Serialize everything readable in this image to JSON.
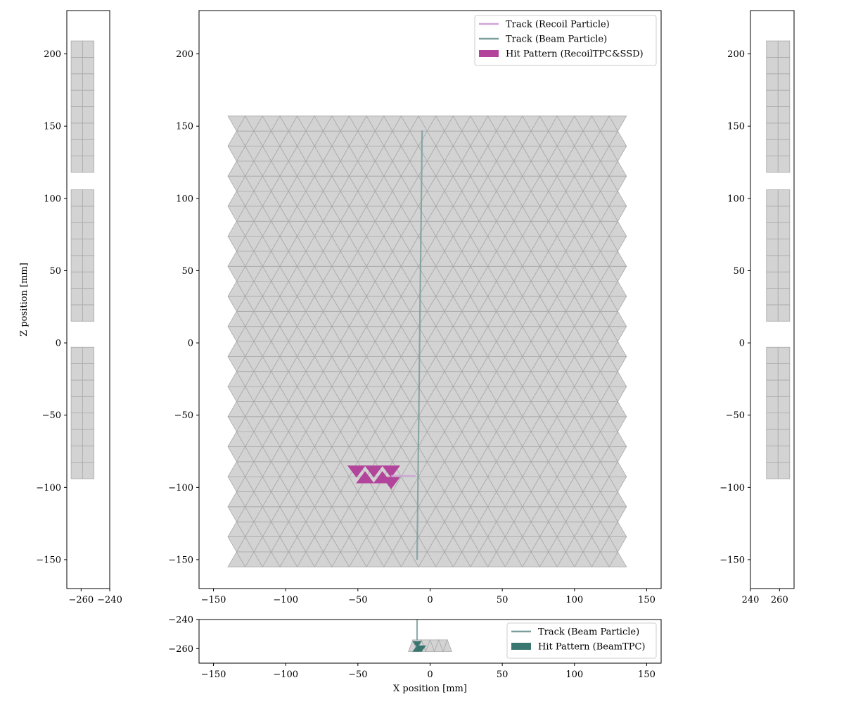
{
  "colors": {
    "pad_fill": "#d3d3d3",
    "pad_edge": "#a9a9a9",
    "recoil_track": "#d0a3d8",
    "beam_track": "#7a9e9c",
    "recoil_hit": "#b3449b",
    "beam_hit": "#3a7670"
  },
  "chart_data": [
    {
      "panel": "main",
      "type": "line",
      "xlim": [
        -160,
        160
      ],
      "ylim": [
        -170,
        230
      ],
      "xticks": [
        "−150",
        "−100",
        "−50",
        "0",
        "50",
        "100",
        "150"
      ],
      "yticks": [
        "−150",
        "−100",
        "−50",
        "0",
        "50",
        "100",
        "150",
        "200"
      ],
      "pad_region": {
        "x": [
          -140,
          140
        ],
        "z": [
          -155,
          155
        ],
        "pad_size_mm": 12
      },
      "series": [
        {
          "name": "Track (Recoil Particle)",
          "points": [
            [
              -27,
              -92
            ],
            [
              -10,
              -92
            ]
          ]
        },
        {
          "name": "Track (Beam Particle)",
          "points": [
            [
              -9,
              -150
            ],
            [
              -5.5,
              147
            ]
          ]
        }
      ],
      "hits": [
        {
          "name": "Hit Pattern (RecoilTPC&SSD)",
          "cells": [
            [
              -51,
              -89,
              "d"
            ],
            [
              -45,
              -93,
              "u"
            ],
            [
              -39,
              -89,
              "d"
            ],
            [
              -33,
              -93,
              "u"
            ],
            [
              -27,
              -89,
              "d"
            ],
            [
              -27,
              -97,
              "d"
            ]
          ]
        }
      ],
      "legend": {
        "placement": "top-right",
        "entries": [
          "Track (Recoil Particle)",
          "Track (Beam Particle)",
          "Hit Pattern (RecoilTPC&SSD)"
        ]
      }
    },
    {
      "panel": "bottom",
      "type": "line",
      "xlabel": "X position [mm]",
      "xlim": [
        -160,
        160
      ],
      "ylim": [
        -270,
        -240
      ],
      "xticks": [
        "−150",
        "−100",
        "−50",
        "0",
        "50",
        "100",
        "150"
      ],
      "yticks": [
        "−240",
        "−260"
      ],
      "series": [
        {
          "name": "Track (Beam Particle)",
          "points": [
            [
              -9,
              -240
            ],
            [
              -9,
              -254
            ]
          ]
        }
      ],
      "hits": [
        {
          "name": "Hit Pattern (BeamTPC)",
          "cells": [
            [
              -9,
              -257,
              "d"
            ],
            [
              -9,
              -260,
              "u"
            ],
            [
              -6,
              -260,
              "d"
            ]
          ]
        }
      ],
      "legend": {
        "placement": "bottom-right",
        "entries": [
          "Track (Beam Particle)",
          "Hit Pattern (BeamTPC)"
        ]
      }
    },
    {
      "panel": "left",
      "type": "bar",
      "ylabel": "Z position [mm]",
      "xlim": [
        -270,
        -240
      ],
      "ylim": [
        -170,
        230
      ],
      "xticks": [
        "−260",
        "−240"
      ],
      "yticks": [
        "−150",
        "−100",
        "−50",
        "0",
        "50",
        "100",
        "150",
        "200"
      ],
      "ssd_columns": [
        -263,
        -255
      ],
      "ssd_blocks": [
        [
          -94,
          -3
        ],
        [
          15,
          106
        ],
        [
          118,
          209
        ]
      ]
    },
    {
      "panel": "right",
      "type": "bar",
      "xlim": [
        240,
        270
      ],
      "ylim": [
        -170,
        230
      ],
      "xticks": [
        "240",
        "260"
      ],
      "yticks": [
        "−150",
        "−100",
        "−50",
        "0",
        "50",
        "100",
        "150",
        "200"
      ],
      "ssd_columns": [
        255,
        263
      ],
      "ssd_blocks": [
        [
          -94,
          -3
        ],
        [
          15,
          106
        ],
        [
          118,
          209
        ]
      ]
    }
  ]
}
